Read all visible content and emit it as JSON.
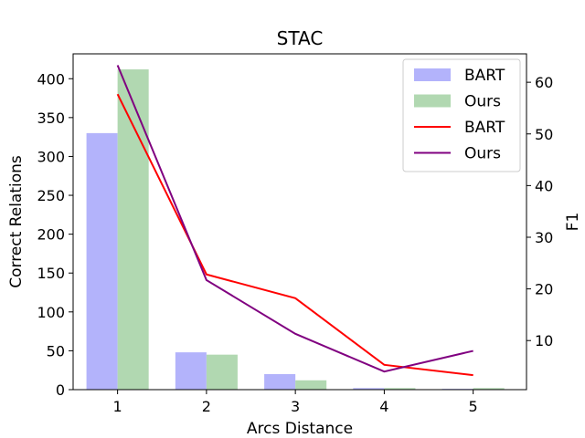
{
  "chart_data": {
    "type": "bar+line",
    "title": "STAC",
    "xlabel": "Arcs Distance",
    "ylabel_left": "Correct Relations",
    "ylabel_right": "F1",
    "categories": [
      "1",
      "2",
      "3",
      "4",
      "5"
    ],
    "xlim": [
      0.5,
      5.6
    ],
    "ylim_left": [
      0,
      432
    ],
    "ylim_right": [
      0.5,
      65.5
    ],
    "yticks_left": [
      0,
      50,
      100,
      150,
      200,
      250,
      300,
      350,
      400
    ],
    "yticks_right": [
      10,
      20,
      30,
      40,
      50,
      60
    ],
    "bar_series": [
      {
        "name": "BART",
        "color": "#b3b3fb",
        "values": [
          330,
          48,
          20,
          2,
          1
        ]
      },
      {
        "name": "Ours",
        "color": "#b1d8b1",
        "values": [
          412,
          45,
          12,
          2,
          2
        ]
      }
    ],
    "line_series": [
      {
        "name": "BART",
        "color": "#ff0000",
        "values": [
          57.7,
          22.8,
          18.2,
          5.3,
          3.3
        ]
      },
      {
        "name": "Ours",
        "color": "#800080",
        "values": [
          63.3,
          21.7,
          11.3,
          4.0,
          8.0
        ]
      }
    ],
    "legend_position": "top-right"
  }
}
